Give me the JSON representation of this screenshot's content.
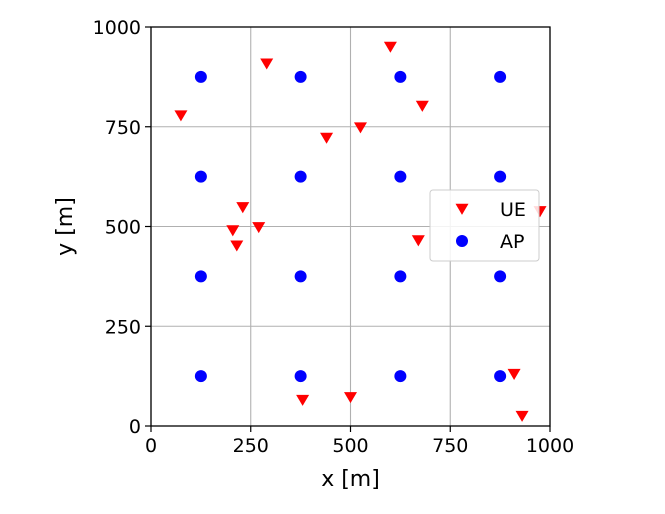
{
  "chart_data": {
    "type": "scatter",
    "title": "",
    "xlabel": "x [m]",
    "ylabel": "y [m]",
    "xlim": [
      0,
      1000
    ],
    "ylim": [
      0,
      1000
    ],
    "xticks": [
      0,
      250,
      500,
      750,
      1000
    ],
    "yticks": [
      0,
      250,
      500,
      750,
      1000
    ],
    "grid": true,
    "legend_position": "right",
    "series": [
      {
        "name": "UE",
        "marker": "triangle-down",
        "color": "#ff0000",
        "points": [
          {
            "x": 290,
            "y": 908
          },
          {
            "x": 600,
            "y": 950
          },
          {
            "x": 75,
            "y": 778
          },
          {
            "x": 680,
            "y": 802
          },
          {
            "x": 440,
            "y": 722
          },
          {
            "x": 525,
            "y": 748
          },
          {
            "x": 230,
            "y": 548
          },
          {
            "x": 205,
            "y": 490
          },
          {
            "x": 270,
            "y": 498
          },
          {
            "x": 215,
            "y": 452
          },
          {
            "x": 670,
            "y": 465
          },
          {
            "x": 975,
            "y": 538
          },
          {
            "x": 380,
            "y": 65
          },
          {
            "x": 500,
            "y": 72
          },
          {
            "x": 910,
            "y": 130
          },
          {
            "x": 930,
            "y": 25
          }
        ]
      },
      {
        "name": "AP",
        "marker": "circle",
        "color": "#0000ff",
        "points": [
          {
            "x": 125,
            "y": 875
          },
          {
            "x": 375,
            "y": 875
          },
          {
            "x": 625,
            "y": 875
          },
          {
            "x": 875,
            "y": 875
          },
          {
            "x": 125,
            "y": 625
          },
          {
            "x": 375,
            "y": 625
          },
          {
            "x": 625,
            "y": 625
          },
          {
            "x": 875,
            "y": 625
          },
          {
            "x": 125,
            "y": 375
          },
          {
            "x": 375,
            "y": 375
          },
          {
            "x": 625,
            "y": 375
          },
          {
            "x": 875,
            "y": 375
          },
          {
            "x": 125,
            "y": 125
          },
          {
            "x": 375,
            "y": 125
          },
          {
            "x": 625,
            "y": 125
          },
          {
            "x": 875,
            "y": 125
          }
        ]
      }
    ]
  }
}
